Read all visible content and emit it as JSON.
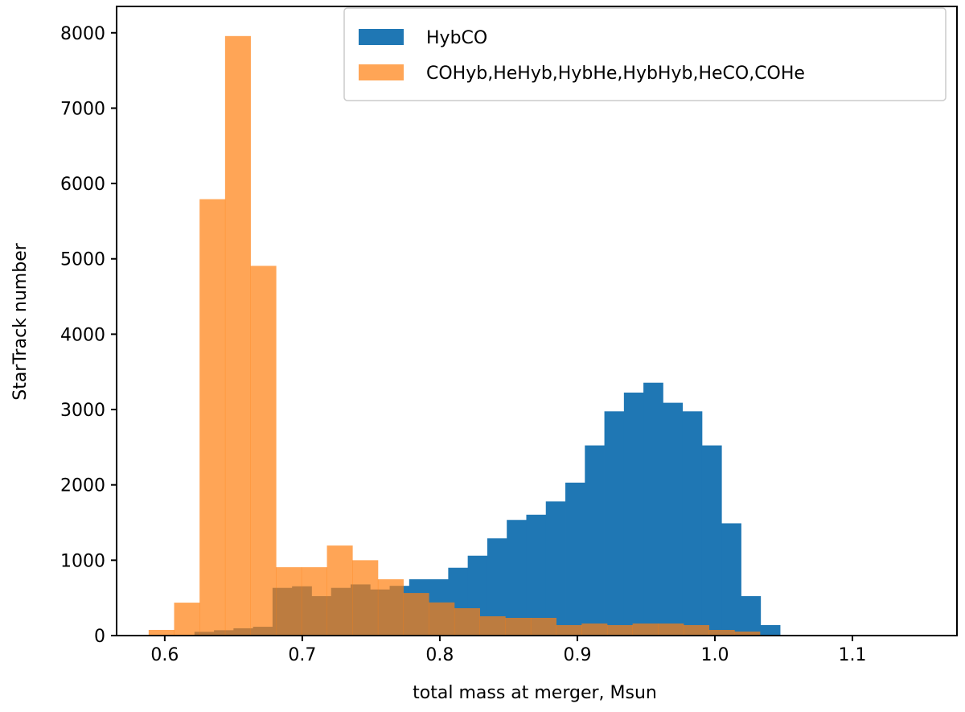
{
  "chart_data": {
    "type": "bar",
    "subtype": "overlaid-histogram",
    "title": "",
    "xlabel": "total mass at merger, Msun",
    "ylabel": "StarTrack number",
    "xlim": [
      0.565,
      1.176
    ],
    "ylim": [
      0,
      8350
    ],
    "xticks": [
      0.6,
      0.7,
      0.8,
      0.9,
      1.0,
      1.1
    ],
    "xtick_labels": [
      "0.6",
      "0.7",
      "0.8",
      "0.9",
      "1.0",
      "1.1"
    ],
    "yticks": [
      0,
      1000,
      2000,
      3000,
      4000,
      5000,
      6000,
      7000,
      8000
    ],
    "ytick_labels": [
      "0",
      "1000",
      "2000",
      "3000",
      "4000",
      "5000",
      "6000",
      "7000",
      "8000"
    ],
    "legend_position": "top-right",
    "series": [
      {
        "name": "HybCO",
        "color": "#1f77b4",
        "opacity": 1,
        "bin_start": 0.6216,
        "bin_width": 0.014193,
        "values": [
          50,
          71,
          96,
          117,
          633,
          654,
          523,
          633,
          679,
          612,
          660,
          747,
          747,
          900,
          1060,
          1290,
          1535,
          1604,
          1780,
          2030,
          2524,
          2976,
          3225,
          3356,
          3090,
          2976,
          2524,
          1490,
          523,
          139
        ]
      },
      {
        "name": "COHyb,HeHyb,HybHe,HybHyb,HeCO,COHe",
        "color": "#ff7f0e",
        "opacity": 0.7,
        "bin_start": 0.5883,
        "bin_width": 0.018518,
        "values": [
          75,
          437,
          5792,
          7957,
          4907,
          907,
          907,
          1195,
          1000,
          747,
          565,
          440,
          363,
          256,
          235,
          235,
          139,
          160,
          139,
          160,
          160,
          139,
          75,
          53
        ]
      }
    ]
  }
}
